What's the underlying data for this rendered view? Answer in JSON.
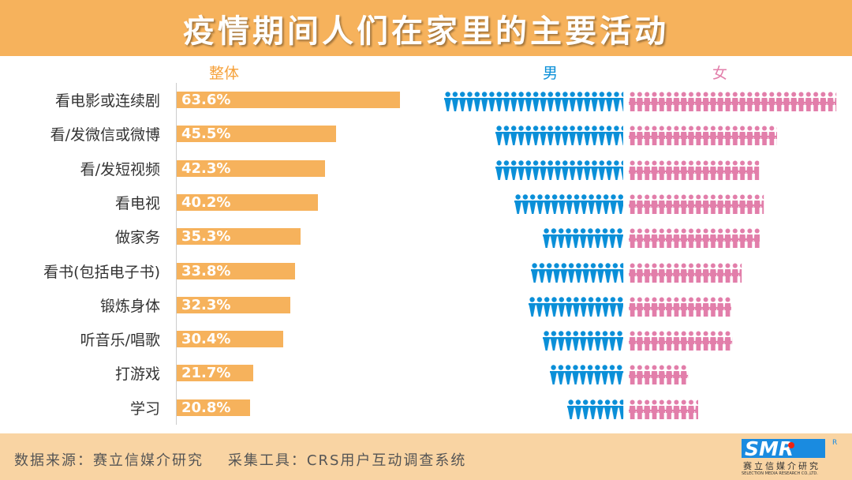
{
  "title": "疫情期间人们在家里的主要活动",
  "footer": {
    "source": "数据来源：赛立信媒介研究",
    "tool": "采集工具：CRS用户互动调查系统",
    "logo_text": "SMR",
    "logo_sub": "赛立信媒介研究",
    "logo_en": "SELECTION MEDIA RESEARCH CO.,LTD.",
    "logo_reg": "R"
  },
  "chart_data": {
    "type": "bar",
    "title": "疫情期间人们在家里的主要活动",
    "series_headers": {
      "overall": "整体",
      "male": "男",
      "female": "女"
    },
    "categories": [
      "看电影或连续剧",
      "看/发微信或微博",
      "看/发短视频",
      "看电视",
      "做家务",
      "看书(包括电子书)",
      "锻炼身体",
      "听音乐/唱歌",
      "打游戏",
      "学习"
    ],
    "overall": [
      63.6,
      45.5,
      42.3,
      40.2,
      35.3,
      33.8,
      32.3,
      30.4,
      21.7,
      20.8
    ],
    "overall_labels": [
      "63.6%",
      "45.5%",
      "42.3%",
      "40.2%",
      "35.3%",
      "33.8%",
      "32.3%",
      "30.4%",
      "21.7%",
      "20.8%"
    ],
    "male_estimated": [
      56.8,
      40.5,
      40.5,
      34.5,
      25.5,
      29.3,
      30,
      25.5,
      23.3,
      17.8
    ],
    "female_estimated": [
      65.8,
      47,
      41.3,
      42.8,
      41.5,
      35.8,
      32.5,
      32.8,
      18.8,
      22
    ],
    "colors": {
      "overall": "#f6b25c",
      "male": "#0a8fd8",
      "female": "#e27eaa"
    }
  }
}
